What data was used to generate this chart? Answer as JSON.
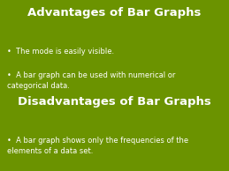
{
  "background_color": "#6b9300",
  "title1": "Advantages of Bar Graphs",
  "title2": "Disadvantages of Bar Graphs",
  "bullet1_1": "The mode is easily visible.",
  "bullet1_2": "A bar graph can be used with numerical or\ncategorical data.",
  "bullet2_1": "A bar graph shows only the frequencies of the\nelements of a data set.",
  "text_color": "#ffffff",
  "title_fontsize": 9.5,
  "bullet_fontsize": 6.0,
  "bullet_symbol": "•"
}
